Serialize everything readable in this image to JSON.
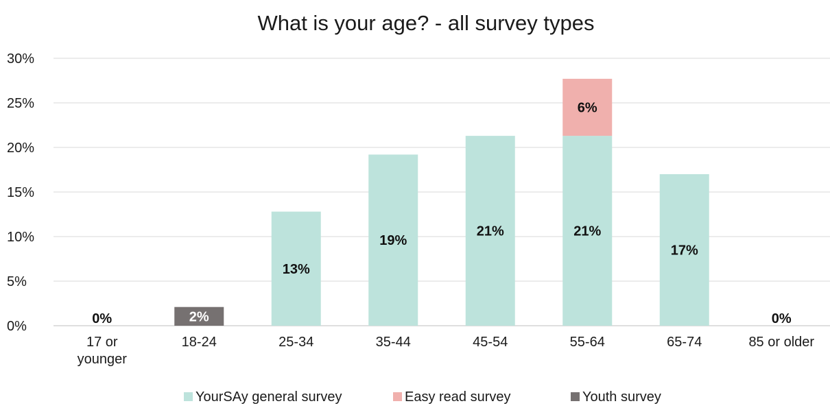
{
  "chart_data": {
    "type": "bar",
    "stacked": true,
    "title": "What is your age? - all survey types",
    "xlabel": "",
    "ylabel": "",
    "ylim": [
      0,
      30
    ],
    "y_ticks": [
      "0%",
      "5%",
      "10%",
      "15%",
      "20%",
      "25%",
      "30%"
    ],
    "y_tick_values": [
      0,
      5,
      10,
      15,
      20,
      25,
      30
    ],
    "grid": "horizontal",
    "legend_position": "bottom",
    "categories": [
      [
        "17 or",
        "younger"
      ],
      [
        "18-24"
      ],
      [
        "25-34"
      ],
      [
        "35-44"
      ],
      [
        "45-54"
      ],
      [
        "55-64"
      ],
      [
        "65-74"
      ],
      [
        "85 or older"
      ]
    ],
    "series": [
      {
        "name": "YourSAy general survey",
        "color": "#bde3dc",
        "values": [
          0,
          0,
          12.8,
          19.2,
          21.3,
          21.3,
          17.0,
          0
        ],
        "labels": [
          "0%",
          "",
          "13%",
          "19%",
          "21%",
          "21%",
          "17%",
          "0%"
        ]
      },
      {
        "name": "Easy read survey",
        "color": "#f0b0ad",
        "values": [
          0,
          0,
          0,
          0,
          0,
          6.4,
          0,
          0
        ],
        "labels": [
          "",
          "",
          "",
          "",
          "",
          "6%",
          "",
          ""
        ]
      },
      {
        "name": "Youth survey",
        "color": "#767171",
        "label_color": "#ffffff",
        "values": [
          0,
          2.1,
          0,
          0,
          0,
          0,
          0,
          0
        ],
        "labels": [
          "",
          "2%",
          "",
          "",
          "",
          "",
          "",
          ""
        ]
      }
    ]
  }
}
